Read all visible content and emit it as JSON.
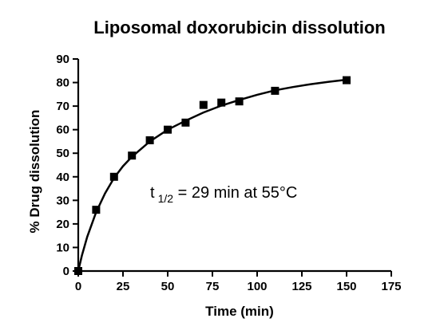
{
  "chart_data": {
    "type": "scatter",
    "title": "Liposomal doxorubicin dissolution",
    "xlabel": "Time (min)",
    "ylabel": "% Drug dissolution",
    "xlim": [
      0,
      175
    ],
    "ylim": [
      0,
      90
    ],
    "x_ticks": [
      "0",
      "25",
      "50",
      "75",
      "100",
      "125",
      "150",
      "175"
    ],
    "y_ticks": [
      "0",
      "10",
      "20",
      "30",
      "40",
      "50",
      "60",
      "70",
      "80",
      "90"
    ],
    "series": [
      {
        "marker": "square",
        "color": "#000000",
        "x": [
          0,
          10,
          20,
          30,
          40,
          50,
          60,
          70,
          80,
          90,
          110,
          150
        ],
        "y": [
          0,
          26,
          40,
          49,
          55.5,
          60,
          63,
          70.5,
          71.5,
          72,
          76.5,
          81
        ]
      }
    ],
    "fit_curve": {
      "type": "line",
      "color": "#000000",
      "x": [
        0,
        2,
        5,
        10,
        15,
        20,
        25,
        30,
        40,
        50,
        60,
        70,
        80,
        90,
        100,
        110,
        120,
        130,
        140,
        150
      ],
      "y": [
        0,
        6.5,
        14.5,
        25,
        33,
        39.5,
        44.5,
        48.5,
        55,
        60,
        63.8,
        67.3,
        70.2,
        72.6,
        74.8,
        76.7,
        78.1,
        79.3,
        80.3,
        81.2
      ]
    },
    "annotation": {
      "prefix": "t",
      "subscript": "1/2",
      "suffix": " = 29 min at 55°C"
    },
    "grid": false,
    "legend": "none"
  }
}
